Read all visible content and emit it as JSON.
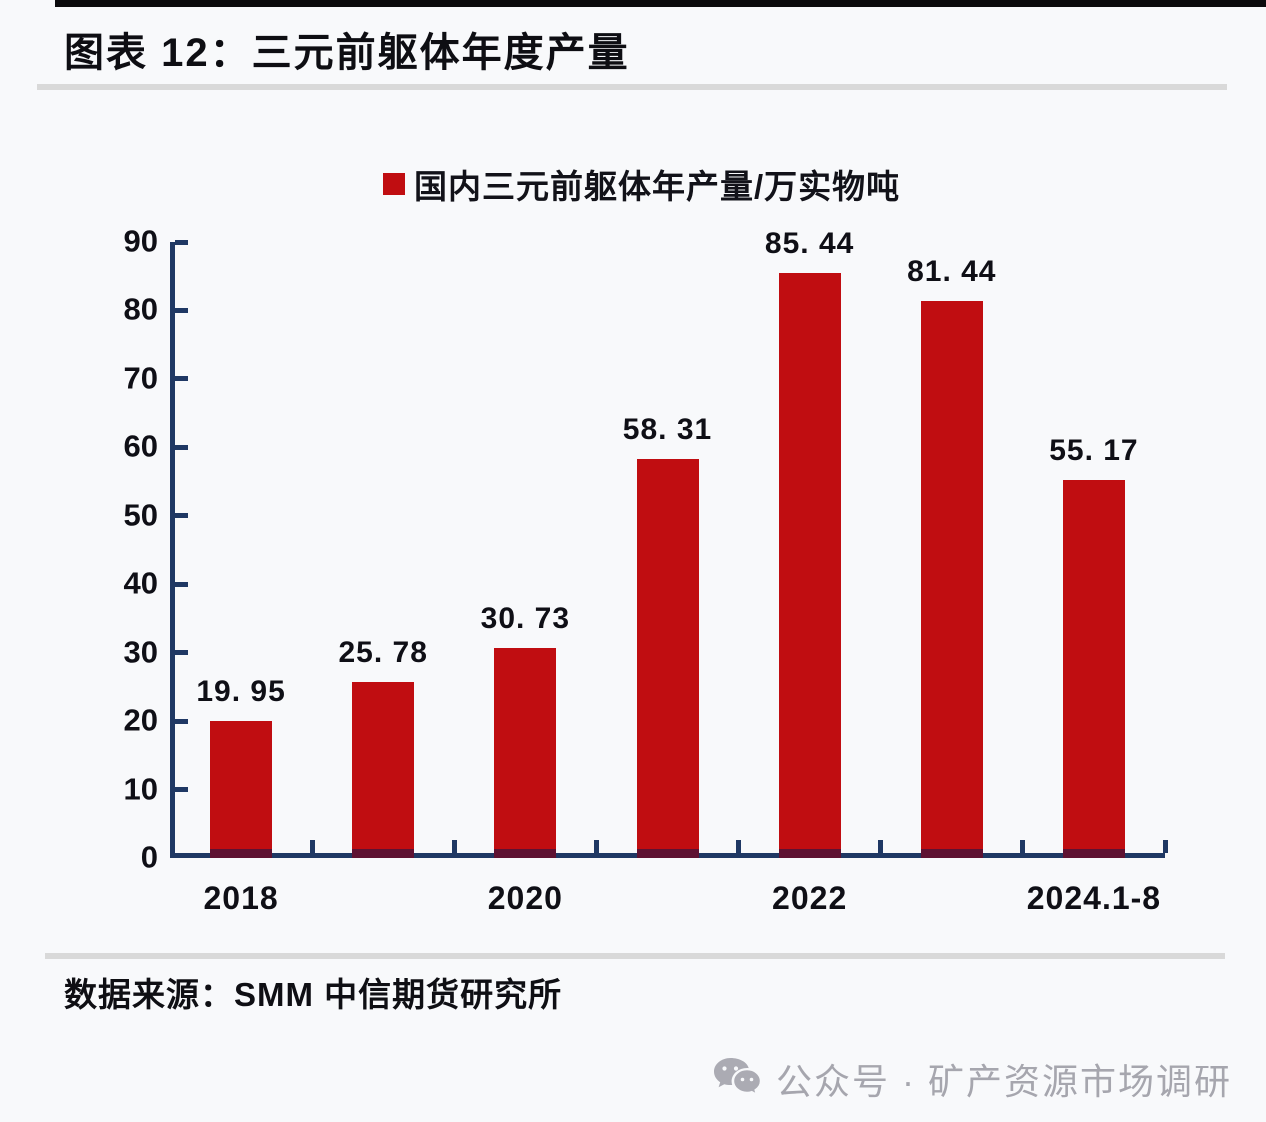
{
  "page": {
    "title": "图表 12：三元前躯体年度产量",
    "source": "数据来源：SMM 中信期货研究所",
    "footer_text": "公众号 · 矿产资源市场调研"
  },
  "colors": {
    "bar": "#C00D11",
    "bar_base": "#5E1232",
    "axis": "#1F3864",
    "divider": "#D9D9D9",
    "background": "#F8F9FB",
    "footer_text": "#A6A6AE",
    "label_text": "#0F0F16"
  },
  "chart_data": {
    "type": "bar",
    "legend": {
      "label": "国内三元前躯体年产量/万实物吨",
      "marker_color": "#C00D11",
      "position": "top"
    },
    "series": [
      {
        "name": "国内三元前躯体年产量/万实物吨",
        "values": [
          19.95,
          25.78,
          30.73,
          58.31,
          85.44,
          81.44,
          55.17
        ]
      }
    ],
    "data_labels": [
      "19. 95",
      "25. 78",
      "30. 73",
      "58. 31",
      "85. 44",
      "81. 44",
      "55. 17"
    ],
    "x_tick_labels": [
      {
        "text": "2018",
        "slot": 0
      },
      {
        "text": "2020",
        "slot": 2
      },
      {
        "text": "2022",
        "slot": 4
      },
      {
        "text": "2024.1-8",
        "slot": 6
      }
    ],
    "y_ticks": [
      0,
      10,
      20,
      30,
      40,
      50,
      60,
      70,
      80,
      90
    ],
    "ylim": [
      0,
      90
    ],
    "grid": false,
    "bar_color": "#C00D11",
    "axis_color": "#1F3864"
  }
}
